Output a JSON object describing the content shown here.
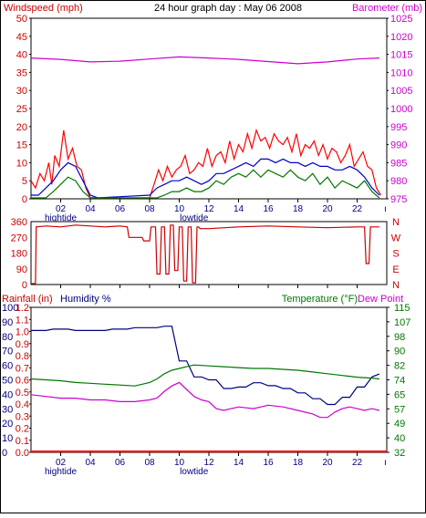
{
  "colors": {
    "red": "#cc0000",
    "brightred": "#ff0000",
    "blue": "#0000cc",
    "darkblue": "#000080",
    "green": "#007700",
    "magenta": "#cc00cc",
    "frame": "#000000"
  },
  "chart_data": [
    {
      "type": "line",
      "panel": "wind-barometer",
      "title": "24 hour graph day : May 06 2008",
      "left_label": "Windspeed (mph)",
      "right_label": "Barometer (mb)",
      "y_ticks": [
        "0",
        "5",
        "10",
        "15",
        "20",
        "25",
        "30",
        "35",
        "40",
        "45",
        "50"
      ],
      "y_ticks_right": [
        "975",
        "980",
        "985",
        "990",
        "995",
        "1000",
        "1005",
        "1010",
        "1015",
        "1020",
        "1025"
      ],
      "ylim": [
        0,
        50
      ],
      "ylim_right": [
        975,
        1025
      ],
      "xlim": [
        0,
        24
      ],
      "x_ticks": [
        "02",
        "04",
        "06",
        "08",
        "10",
        "12",
        "14",
        "16",
        "18",
        "20",
        "22"
      ],
      "tide_labels": [
        "hightide",
        "lowtide"
      ],
      "series": [
        {
          "key": "gust",
          "color": "#ff0000",
          "axis": "left",
          "x": [
            0,
            0.3,
            0.6,
            0.9,
            1.2,
            1.4,
            1.6,
            1.9,
            2.2,
            2.5,
            2.8,
            3.1,
            3.4,
            3.7,
            4.0,
            4.3,
            8.0,
            8.3,
            8.6,
            8.9,
            9.2,
            9.5,
            9.8,
            10.1,
            10.4,
            10.7,
            11.0,
            11.3,
            11.6,
            11.9,
            12.2,
            12.5,
            12.8,
            13.1,
            13.4,
            13.7,
            14.0,
            14.3,
            14.6,
            14.9,
            15.2,
            15.5,
            15.8,
            16.1,
            16.4,
            16.7,
            17.0,
            17.3,
            17.6,
            17.9,
            18.2,
            18.5,
            18.8,
            19.1,
            19.4,
            19.7,
            20.0,
            20.3,
            20.6,
            20.9,
            21.2,
            21.5,
            21.8,
            22.1,
            22.4,
            22.7,
            23.0,
            23.3,
            23.6
          ],
          "values": [
            5,
            3,
            7,
            5,
            10,
            4,
            12,
            9,
            19,
            11,
            14,
            9,
            8,
            3,
            0,
            0,
            0,
            4,
            8,
            5,
            9,
            6,
            8,
            9,
            12,
            7,
            8,
            10,
            9,
            14,
            9,
            12,
            13,
            10,
            16,
            11,
            15,
            13,
            18,
            14,
            19,
            16,
            17,
            14,
            18,
            16,
            15,
            17,
            13,
            18,
            12,
            15,
            14,
            16,
            12,
            15,
            11,
            14,
            13,
            10,
            12,
            15,
            9,
            11,
            13,
            9,
            8,
            3,
            1
          ]
        },
        {
          "key": "avg",
          "color": "#0000cc",
          "axis": "left",
          "x": [
            0,
            0.5,
            1.0,
            1.5,
            2.0,
            2.5,
            3.0,
            3.5,
            4.0,
            4.5,
            8.0,
            8.5,
            9.0,
            9.5,
            10.0,
            10.5,
            11.0,
            11.5,
            12.0,
            12.5,
            13.0,
            13.5,
            14.0,
            14.5,
            15.0,
            15.5,
            16.0,
            16.5,
            17.0,
            17.5,
            18.0,
            18.5,
            19.0,
            19.5,
            20.0,
            20.5,
            21.0,
            21.5,
            22.0,
            22.5,
            23.0,
            23.5
          ],
          "values": [
            1,
            1,
            3,
            5,
            8,
            10,
            9,
            5,
            1,
            0,
            1,
            3,
            4,
            5,
            5,
            6,
            5,
            4,
            5,
            7,
            7,
            8,
            9,
            10,
            9,
            11,
            11,
            10,
            11,
            10,
            10,
            9,
            10,
            9,
            9,
            8,
            8,
            9,
            8,
            6,
            3,
            1
          ]
        },
        {
          "key": "min",
          "color": "#007700",
          "axis": "left",
          "x": [
            0,
            0.5,
            1.0,
            1.5,
            2.0,
            2.5,
            3.0,
            3.5,
            4.0,
            8.0,
            8.5,
            9.0,
            9.5,
            10.0,
            10.5,
            11.0,
            11.5,
            12.0,
            12.5,
            13.0,
            13.5,
            14.0,
            14.5,
            15.0,
            15.5,
            16.0,
            16.5,
            17.0,
            17.5,
            18.0,
            18.5,
            19.0,
            19.5,
            20.0,
            20.5,
            21.0,
            21.5,
            22.0,
            22.5,
            23.0,
            23.5
          ],
          "values": [
            0,
            0,
            0,
            2,
            4,
            6,
            5,
            2,
            0,
            0,
            0,
            1,
            2,
            2,
            3,
            2,
            2,
            3,
            5,
            4,
            6,
            7,
            6,
            8,
            6,
            8,
            7,
            6,
            8,
            6,
            5,
            7,
            4,
            6,
            3,
            5,
            4,
            3,
            5,
            2,
            0
          ]
        },
        {
          "key": "baro",
          "color": "#cc00cc",
          "axis": "right",
          "x": [
            0,
            2,
            4,
            6,
            8,
            10,
            12,
            14,
            16,
            18,
            20,
            22,
            23.5
          ],
          "values": [
            1014.0,
            1013.6,
            1012.9,
            1013.1,
            1013.7,
            1014.3,
            1014.0,
            1013.6,
            1013.0,
            1012.4,
            1012.9,
            1013.7,
            1014.0
          ]
        }
      ]
    },
    {
      "type": "line",
      "panel": "wind-direction",
      "y_ticks": [
        "0",
        "90",
        "180",
        "270",
        "360"
      ],
      "y_ticks_right": [
        "N",
        "E",
        "S",
        "W",
        "N"
      ],
      "ylim": [
        0,
        360
      ],
      "xlim": [
        0,
        24
      ],
      "x_ticks": [
        "02",
        "04",
        "06",
        "08",
        "10",
        "12",
        "14",
        "16",
        "18",
        "20",
        "22"
      ],
      "series": [
        {
          "key": "dir",
          "color": "#cc0000",
          "axis": "left",
          "x": [
            0,
            0.3,
            0.35,
            1,
            2,
            3,
            4,
            5,
            6,
            6.5,
            6.6,
            7.5,
            7.6,
            8.0,
            8.1,
            8.4,
            8.5,
            8.7,
            8.8,
            9.0,
            9.1,
            9.3,
            9.4,
            9.6,
            9.7,
            9.9,
            10.0,
            10.2,
            10.3,
            10.5,
            10.6,
            10.8,
            10.9,
            11.1,
            11.2,
            11.3,
            11.4,
            12,
            14,
            16,
            18,
            20,
            22,
            22.5,
            22.6,
            22.8,
            22.9,
            23.5
          ],
          "values": [
            0,
            0,
            330,
            335,
            330,
            340,
            335,
            330,
            335,
            330,
            270,
            270,
            250,
            250,
            330,
            330,
            60,
            60,
            330,
            330,
            60,
            60,
            340,
            340,
            80,
            80,
            330,
            330,
            20,
            20,
            330,
            330,
            10,
            10,
            330,
            330,
            320,
            320,
            330,
            335,
            330,
            325,
            330,
            330,
            120,
            120,
            330,
            330
          ]
        }
      ]
    },
    {
      "type": "line",
      "panel": "rain-humidity-temperature",
      "left_label_rain": "Rainfall (in)",
      "left_label_hum": "Humidity %",
      "right_label_temp": "Temperature (°F)",
      "right_label_dew": "Dew Point",
      "y_ticks_rain": [
        "0.0",
        "0.1",
        "0.2",
        "0.3",
        "0.4",
        "0.5",
        "0.6",
        "0.7",
        "0.8",
        "0.9",
        "1.0",
        "1.1",
        "1.2"
      ],
      "y_ticks_hum": [
        "0",
        "10",
        "20",
        "30",
        "40",
        "50",
        "60",
        "70",
        "80",
        "90",
        "100"
      ],
      "y_ticks_right": [
        "32",
        "40",
        "49",
        "57",
        "65",
        "74",
        "82",
        "90",
        "98",
        "107",
        "115"
      ],
      "ylim_hum": [
        0,
        100
      ],
      "ylim_temp": [
        32,
        115
      ],
      "xlim": [
        0,
        24
      ],
      "x_ticks": [
        "02",
        "04",
        "06",
        "08",
        "10",
        "12",
        "14",
        "16",
        "18",
        "20",
        "22"
      ],
      "tide_labels": [
        "hightide",
        "lowtide"
      ],
      "series": [
        {
          "key": "rain",
          "color": "#ff0000",
          "axis": "hum",
          "x": [
            0,
            24
          ],
          "values": [
            0,
            0
          ]
        },
        {
          "key": "hum",
          "color": "#000080",
          "axis": "hum",
          "x": [
            0,
            1,
            1.5,
            2.5,
            3,
            5,
            5.5,
            6.5,
            7,
            8.5,
            9,
            9.5,
            10,
            10.5,
            11,
            11.5,
            12,
            12.5,
            13,
            13.5,
            14,
            14.5,
            15,
            15.5,
            16,
            16.5,
            17,
            17.5,
            18,
            18.5,
            19,
            19.5,
            20,
            20.5,
            21,
            21.5,
            22,
            22.5,
            23,
            23.5
          ],
          "values": [
            84,
            84,
            85,
            85,
            84,
            84,
            85,
            85,
            86,
            86,
            87,
            87,
            63,
            63,
            52,
            52,
            50,
            50,
            44,
            44,
            45,
            45,
            48,
            48,
            46,
            46,
            44,
            44,
            41,
            41,
            37,
            37,
            33,
            33,
            38,
            38,
            45,
            45,
            52,
            54
          ]
        },
        {
          "key": "temp",
          "color": "#007700",
          "axis": "temp",
          "x": [
            0,
            1,
            2,
            3,
            4,
            5,
            6,
            7,
            8,
            8.5,
            9,
            9.5,
            10,
            10.5,
            11,
            12,
            13,
            14,
            15,
            16,
            17,
            18,
            19,
            20,
            21,
            22,
            23,
            23.5
          ],
          "values": [
            74,
            73.5,
            73,
            72,
            71.5,
            71,
            70.5,
            70,
            72,
            74,
            77,
            79,
            80,
            81,
            82,
            81.5,
            81,
            80.5,
            80,
            80,
            79.5,
            79,
            78,
            77,
            76,
            75,
            74.5,
            74
          ]
        },
        {
          "key": "dew",
          "color": "#cc00cc",
          "axis": "temp",
          "x": [
            0,
            1,
            2,
            3,
            4,
            5,
            6,
            7,
            8,
            8.5,
            9,
            9.5,
            10,
            10.5,
            11,
            11.5,
            12,
            12.5,
            13,
            13.5,
            14,
            15,
            16,
            17,
            18,
            19,
            19.5,
            20,
            20.5,
            21,
            21.5,
            22,
            22.5,
            23,
            23.5
          ],
          "values": [
            65,
            64,
            63,
            63,
            62,
            62,
            61,
            61,
            62,
            63,
            67,
            70,
            72,
            68,
            64,
            62,
            61,
            57,
            56,
            57,
            58,
            57,
            59,
            58,
            56,
            54,
            52,
            52,
            55,
            57,
            58,
            57,
            56,
            57,
            56
          ]
        }
      ]
    }
  ]
}
